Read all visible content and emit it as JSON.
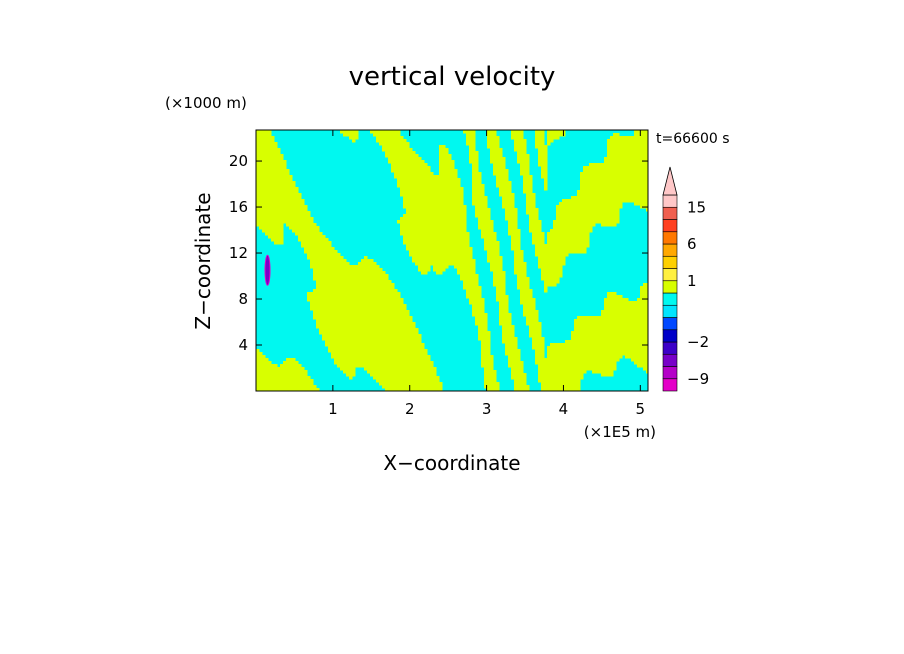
{
  "chart_data": {
    "type": "heatmap",
    "title": "vertical velocity",
    "xlabel": "X−coordinate",
    "ylabel": "Z−coordinate",
    "x_unit": "(×1E5 m)",
    "y_unit": "(×1000 m)",
    "time_label": "t=66600 s",
    "xlim": [
      0,
      5.1
    ],
    "ylim": [
      0,
      22.7
    ],
    "x_ticks": [
      1,
      2,
      3,
      4,
      5
    ],
    "y_ticks": [
      4,
      8,
      12,
      16,
      20
    ],
    "colorbar": {
      "labels": [
        "15",
        "6",
        "1",
        "−2",
        "−9"
      ],
      "label_values": [
        15,
        6,
        1,
        -2,
        -9
      ],
      "levels": [
        -12,
        -9,
        -6,
        -4,
        -2,
        -1,
        -0.5,
        0,
        0.5,
        1,
        2,
        4,
        6,
        9,
        12,
        15,
        20
      ],
      "colors": [
        "#e400c8",
        "#b400c8",
        "#7800c8",
        "#3c00c8",
        "#0000c8",
        "#0048ff",
        "#00e4ff",
        "#00f8f0",
        "#d8ff00",
        "#fff040",
        "#ffd000",
        "#ffa800",
        "#ff7800",
        "#ff4020",
        "#f06050",
        "#ffc8c8"
      ],
      "extend": "max"
    },
    "field_description": "banded pattern of weak updrafts (yellow, 0 to 0.5) and weak downdrafts (cyan, -0.5 to 0); diverging wave bands centred near x=3.8; small strong downdraft patch near x=0.15, z=9.5-11.5"
  }
}
